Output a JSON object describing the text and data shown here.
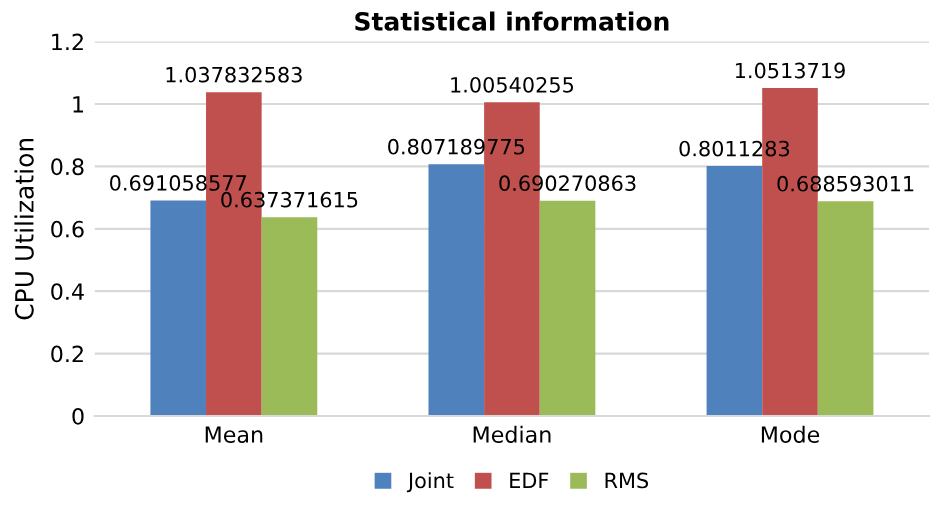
{
  "chart_data": {
    "type": "bar",
    "title": "Statistical information",
    "ylabel": "CPU Utilization",
    "categories": [
      "Mean",
      "Median",
      "Mode"
    ],
    "series": [
      {
        "name": "Joint",
        "color": "#4f81bd",
        "values": [
          0.691058577,
          0.807189775,
          0.8011283
        ]
      },
      {
        "name": "EDF",
        "color": "#c0504d",
        "values": [
          1.037832583,
          1.00540255,
          1.0513719
        ]
      },
      {
        "name": "RMS",
        "color": "#9bbb59",
        "values": [
          0.637371615,
          0.690270863,
          0.688593011
        ]
      }
    ],
    "ylim": [
      0,
      1.2
    ],
    "yticks": [
      0,
      0.2,
      0.4,
      0.6,
      0.8,
      1,
      1.2
    ],
    "grid": "y",
    "legend": "bottom",
    "data_labels": true
  }
}
